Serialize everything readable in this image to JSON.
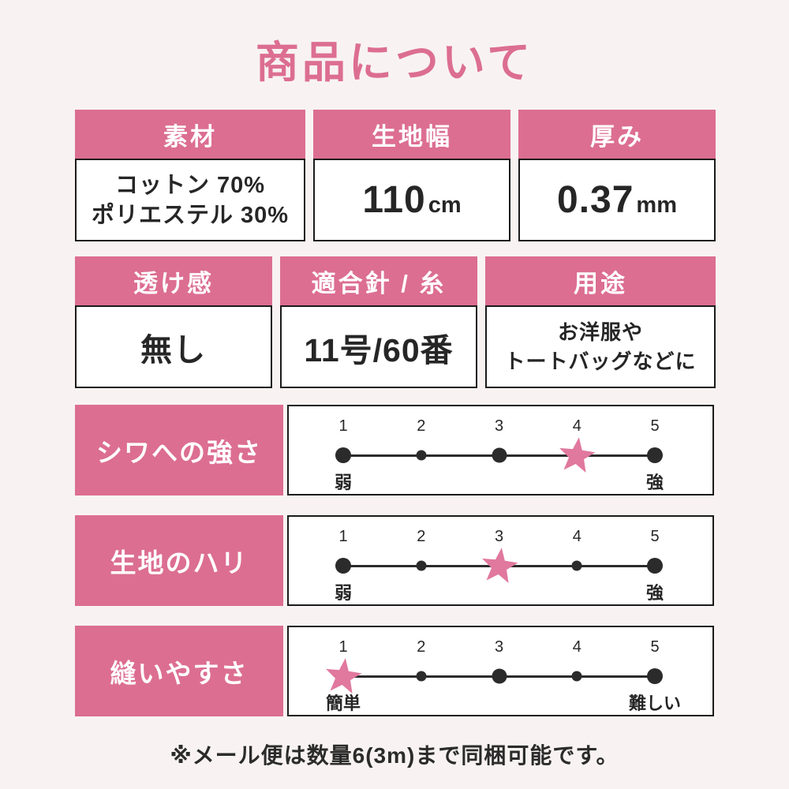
{
  "title": "商品について",
  "colors": {
    "accent_pink": "#dc6e92",
    "star_pink": "#e1789e",
    "background": "#f8f3f2",
    "text": "#262626",
    "card_border": "#1b1b1b",
    "dot": "#2b2b2b"
  },
  "specs": [
    {
      "label": "素材",
      "lines": [
        "コットン 70%",
        "ポリエステル 30%"
      ]
    },
    {
      "label": "生地幅",
      "value": "110",
      "unit": "cm"
    },
    {
      "label": "厚み",
      "value": "0.37",
      "unit": "mm"
    },
    {
      "label": "透け感",
      "value": "無し"
    },
    {
      "label": "適合針 / 糸",
      "value": "11号/60番"
    },
    {
      "label": "用途",
      "lines": [
        "お洋服や",
        "トートバッグなどに"
      ]
    }
  ],
  "scales": [
    {
      "label": "シワへの強さ",
      "ticks": [
        "1",
        "2",
        "3",
        "4",
        "5"
      ],
      "star_at": 4,
      "dot_sizes": [
        20,
        13,
        19,
        0,
        20
      ],
      "left_label": "弱",
      "right_label": "強"
    },
    {
      "label": "生地のハリ",
      "ticks": [
        "1",
        "2",
        "3",
        "4",
        "5"
      ],
      "star_at": 3,
      "dot_sizes": [
        20,
        13,
        0,
        13,
        20
      ],
      "left_label": "弱",
      "right_label": "強"
    },
    {
      "label": "縫いやすさ",
      "ticks": [
        "1",
        "2",
        "3",
        "4",
        "5"
      ],
      "star_at": 1,
      "dot_sizes": [
        0,
        13,
        19,
        13,
        20
      ],
      "left_label": "簡単",
      "right_label": "難しい"
    }
  ],
  "footer_note": "※メール便は数量6(3m)まで同梱可能です。"
}
